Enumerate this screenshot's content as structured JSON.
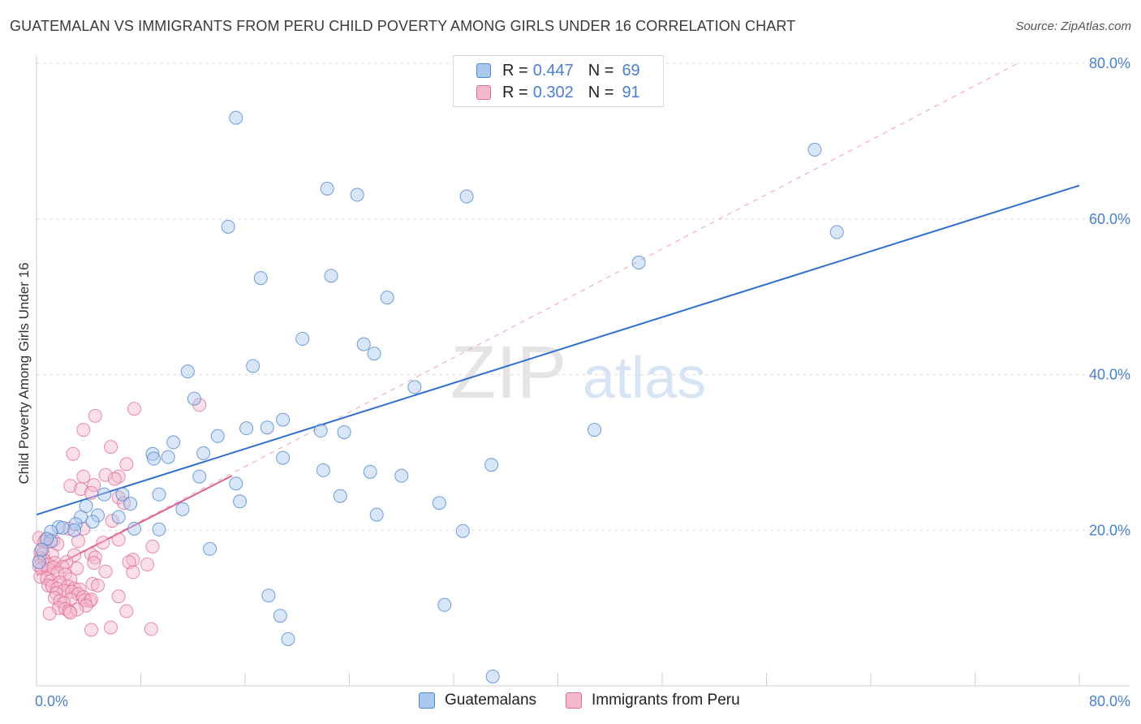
{
  "chart_data": {
    "type": "scatter",
    "title": "GUATEMALAN VS IMMIGRANTS FROM PERU CHILD POVERTY AMONG GIRLS UNDER 16 CORRELATION CHART",
    "source": "Source: ZipAtlas.com",
    "ylabel": "Child Poverty Among Girls Under 16",
    "xlabel": "",
    "xlim": [
      0,
      80
    ],
    "ylim": [
      0,
      80
    ],
    "x_tick_labels": [
      "0.0%",
      "80.0%"
    ],
    "y_tick_labels": [
      {
        "value": 20,
        "label": "20.0%"
      },
      {
        "value": 40,
        "label": "40.0%"
      },
      {
        "value": 60,
        "label": "60.0%"
      },
      {
        "value": 80,
        "label": "80.0%"
      }
    ],
    "watermark": {
      "zip": "ZIP",
      "atlas": "atlas"
    },
    "stats": [
      {
        "r_label": "R =",
        "r_value": "0.447",
        "n_label": "N =",
        "n_value": "69"
      },
      {
        "r_label": "R =",
        "r_value": "0.302",
        "n_label": "N =",
        "n_value": "91"
      }
    ],
    "colors": {
      "guatemalan_fill": "#aac8ee",
      "guatemalan_stroke": "#4f86d0",
      "guatemalan_line": "#2f6fcc",
      "peru_fill": "#f5b8cc",
      "peru_stroke": "#e06f96",
      "peru_line": "#e0608c",
      "axis_label": "#4a7fcf",
      "grid": "#dddddd"
    },
    "series": [
      {
        "name": "Guatemalans",
        "trend": {
          "x0": 0,
          "y0": 22.0,
          "x1": 80,
          "y1": 64.3
        },
        "points": [
          [
            15.3,
            73.0
          ],
          [
            22.3,
            63.9
          ],
          [
            24.6,
            63.1
          ],
          [
            33.0,
            62.9
          ],
          [
            14.7,
            59.0
          ],
          [
            17.2,
            52.4
          ],
          [
            22.6,
            52.7
          ],
          [
            26.9,
            49.9
          ],
          [
            46.2,
            54.4
          ],
          [
            20.4,
            44.6
          ],
          [
            25.1,
            43.9
          ],
          [
            25.9,
            42.7
          ],
          [
            11.6,
            40.4
          ],
          [
            16.6,
            41.1
          ],
          [
            29.0,
            38.4
          ],
          [
            12.1,
            36.9
          ],
          [
            18.9,
            34.2
          ],
          [
            16.1,
            33.1
          ],
          [
            17.7,
            33.2
          ],
          [
            21.8,
            32.8
          ],
          [
            23.6,
            32.6
          ],
          [
            42.8,
            32.9
          ],
          [
            13.9,
            32.1
          ],
          [
            10.5,
            31.3
          ],
          [
            12.8,
            29.9
          ],
          [
            8.9,
            29.8
          ],
          [
            9.0,
            29.2
          ],
          [
            10.1,
            29.4
          ],
          [
            18.9,
            29.3
          ],
          [
            22.0,
            27.7
          ],
          [
            25.6,
            27.5
          ],
          [
            28.0,
            27.0
          ],
          [
            34.9,
            28.4
          ],
          [
            12.5,
            26.9
          ],
          [
            9.4,
            24.6
          ],
          [
            6.6,
            24.6
          ],
          [
            5.2,
            24.6
          ],
          [
            7.2,
            23.4
          ],
          [
            3.8,
            23.1
          ],
          [
            15.3,
            26.0
          ],
          [
            11.2,
            22.7
          ],
          [
            15.6,
            23.7
          ],
          [
            23.3,
            24.4
          ],
          [
            30.9,
            23.5
          ],
          [
            26.1,
            22.0
          ],
          [
            4.7,
            21.9
          ],
          [
            6.3,
            21.7
          ],
          [
            3.4,
            21.7
          ],
          [
            4.3,
            21.1
          ],
          [
            3.0,
            20.8
          ],
          [
            1.7,
            20.4
          ],
          [
            2.9,
            20.0
          ],
          [
            2.0,
            20.3
          ],
          [
            7.5,
            20.2
          ],
          [
            9.4,
            20.1
          ],
          [
            1.1,
            19.8
          ],
          [
            1.1,
            18.6
          ],
          [
            0.8,
            18.9
          ],
          [
            32.7,
            19.9
          ],
          [
            13.3,
            17.6
          ],
          [
            59.7,
            68.9
          ],
          [
            61.4,
            58.3
          ],
          [
            17.8,
            11.6
          ],
          [
            18.7,
            9.0
          ],
          [
            19.3,
            6.0
          ],
          [
            31.3,
            10.4
          ],
          [
            35.0,
            1.2
          ],
          [
            0.4,
            17.5
          ],
          [
            0.2,
            15.9
          ]
        ]
      },
      {
        "name": "Immigrants from Peru",
        "trend": {
          "x0": 0,
          "y0": 14.2,
          "x1": 15.0,
          "y1": 27.0
        },
        "dashed": {
          "x0": 0,
          "y0": 14.2,
          "x1": 75.4,
          "y1": 80.1
        },
        "points": [
          [
            7.5,
            35.6
          ],
          [
            12.5,
            36.1
          ],
          [
            4.5,
            34.7
          ],
          [
            3.6,
            32.9
          ],
          [
            5.7,
            30.7
          ],
          [
            2.8,
            29.8
          ],
          [
            6.9,
            28.5
          ],
          [
            5.3,
            27.1
          ],
          [
            6.3,
            26.9
          ],
          [
            6.0,
            26.6
          ],
          [
            3.6,
            26.9
          ],
          [
            2.6,
            25.7
          ],
          [
            4.4,
            25.8
          ],
          [
            3.4,
            25.3
          ],
          [
            4.2,
            24.8
          ],
          [
            6.3,
            24.2
          ],
          [
            6.7,
            23.5
          ],
          [
            5.8,
            21.2
          ],
          [
            2.5,
            20.2
          ],
          [
            3.6,
            20.2
          ],
          [
            0.2,
            19.0
          ],
          [
            0.7,
            18.8
          ],
          [
            1.3,
            18.7
          ],
          [
            0.6,
            18.5
          ],
          [
            1.6,
            18.2
          ],
          [
            3.2,
            18.6
          ],
          [
            5.1,
            18.4
          ],
          [
            6.3,
            18.8
          ],
          [
            0.3,
            17.2
          ],
          [
            0.5,
            17.0
          ],
          [
            1.2,
            16.9
          ],
          [
            2.9,
            16.8
          ],
          [
            4.2,
            16.9
          ],
          [
            4.5,
            16.5
          ],
          [
            7.4,
            16.2
          ],
          [
            8.9,
            17.9
          ],
          [
            0.3,
            16.4
          ],
          [
            0.6,
            16.1
          ],
          [
            0.9,
            15.6
          ],
          [
            1.4,
            15.8
          ],
          [
            2.3,
            15.9
          ],
          [
            4.4,
            15.8
          ],
          [
            7.1,
            15.9
          ],
          [
            8.5,
            15.6
          ],
          [
            0.2,
            15.4
          ],
          [
            0.4,
            15.1
          ],
          [
            0.9,
            15.0
          ],
          [
            1.3,
            15.2
          ],
          [
            2.0,
            15.3
          ],
          [
            3.1,
            15.1
          ],
          [
            5.3,
            14.7
          ],
          [
            7.4,
            14.6
          ],
          [
            1.6,
            14.5
          ],
          [
            2.2,
            14.3
          ],
          [
            0.3,
            14.0
          ],
          [
            0.8,
            13.8
          ],
          [
            1.1,
            13.5
          ],
          [
            2.6,
            13.7
          ],
          [
            1.8,
            13.3
          ],
          [
            4.3,
            13.1
          ],
          [
            0.9,
            12.9
          ],
          [
            1.2,
            12.8
          ],
          [
            1.6,
            12.5
          ],
          [
            2.4,
            12.8
          ],
          [
            2.9,
            12.5
          ],
          [
            3.3,
            12.4
          ],
          [
            4.7,
            12.9
          ],
          [
            2.1,
            12.2
          ],
          [
            2.7,
            12.1
          ],
          [
            1.5,
            11.9
          ],
          [
            3.2,
            11.8
          ],
          [
            3.6,
            11.4
          ],
          [
            1.4,
            11.3
          ],
          [
            2.6,
            11.1
          ],
          [
            6.3,
            11.5
          ],
          [
            1.8,
            10.9
          ],
          [
            4.1,
            10.9
          ],
          [
            3.7,
            11.0
          ],
          [
            4.2,
            11.1
          ],
          [
            2.1,
            10.6
          ],
          [
            3.8,
            10.3
          ],
          [
            1.7,
            10.0
          ],
          [
            2.2,
            9.9
          ],
          [
            2.5,
            9.6
          ],
          [
            3.1,
            9.8
          ],
          [
            6.9,
            9.6
          ],
          [
            1.0,
            9.3
          ],
          [
            2.6,
            9.4
          ],
          [
            4.2,
            7.2
          ],
          [
            5.7,
            7.5
          ],
          [
            8.8,
            7.3
          ]
        ]
      }
    ]
  }
}
